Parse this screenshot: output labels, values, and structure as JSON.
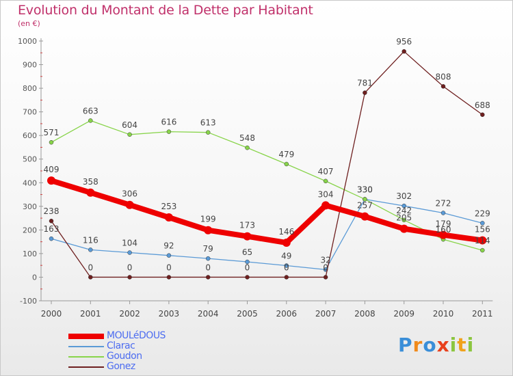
{
  "header": {
    "title": "Evolution du Montant de la Dette par Habitant",
    "subtitle": "(en €)"
  },
  "logo": {
    "text": "Proxiti",
    "letters": [
      {
        "ch": "P",
        "color": "#3a8ed8"
      },
      {
        "ch": "r",
        "color": "#f08a1c"
      },
      {
        "ch": "o",
        "color": "#3a8ed8"
      },
      {
        "ch": "x",
        "color": "#e8401c"
      },
      {
        "ch": "i",
        "color": "#8cc63f"
      },
      {
        "ch": "t",
        "color": "#f0a21c"
      },
      {
        "ch": "i",
        "color": "#8cc63f"
      }
    ]
  },
  "chart_data": {
    "type": "line",
    "title": "Evolution du Montant de la Dette par Habitant",
    "subtitle": "(en €)",
    "xlabel": "",
    "ylabel": "",
    "x": [
      "2000",
      "2001",
      "2002",
      "2003",
      "2004",
      "2005",
      "2006",
      "2007",
      "2008",
      "2009",
      "2010",
      "2011"
    ],
    "y_ticks": [
      -100,
      0,
      100,
      200,
      300,
      400,
      500,
      600,
      700,
      800,
      900,
      1000
    ],
    "ylim": [
      -100,
      1000
    ],
    "grid": false,
    "legend_position": "bottom-left",
    "series": [
      {
        "name": "MOULéDOUS",
        "color": "#ee0000",
        "emphasis": true,
        "values": [
          409,
          358,
          306,
          253,
          199,
          173,
          146,
          304,
          257,
          205,
          179,
          156
        ],
        "labels": [
          "409",
          "358",
          "306",
          "253",
          "199",
          "173",
          "146",
          "304",
          "257",
          "205",
          "179",
          "156"
        ]
      },
      {
        "name": "Clarac",
        "color": "#5a9ad6",
        "emphasis": false,
        "values": [
          163,
          116,
          104,
          92,
          79,
          65,
          49,
          32,
          330,
          302,
          272,
          229
        ],
        "labels": [
          "163",
          "116",
          "104",
          "92",
          "79",
          "65",
          "49",
          "32",
          "330",
          "302",
          "272",
          "229"
        ]
      },
      {
        "name": "Goudon",
        "color": "#88d44a",
        "emphasis": false,
        "values": [
          571,
          663,
          604,
          616,
          613,
          548,
          479,
          407,
          330,
          242,
          160,
          114
        ],
        "labels": [
          "571",
          "663",
          "604",
          "616",
          "613",
          "548",
          "479",
          "407",
          "330",
          "242",
          "160",
          "114"
        ]
      },
      {
        "name": "Gonez",
        "color": "#6e1f1f",
        "emphasis": false,
        "values": [
          238,
          0,
          0,
          0,
          0,
          0,
          0,
          0,
          781,
          956,
          808,
          688
        ],
        "labels": [
          "238",
          "0",
          "0",
          "0",
          "0",
          "0",
          "0",
          "0",
          "781",
          "956",
          "808",
          "688"
        ]
      }
    ]
  }
}
